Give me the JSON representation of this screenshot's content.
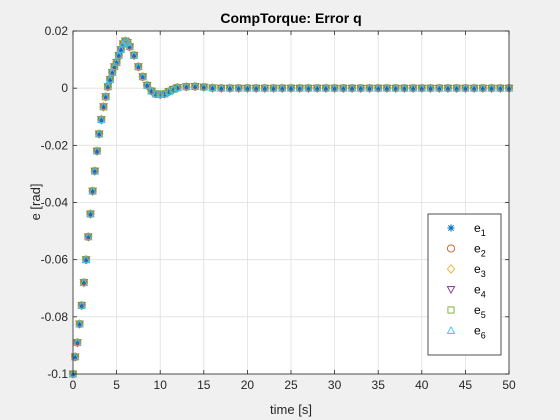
{
  "chart_data": {
    "type": "scatter",
    "title": "CompTorque: Error q",
    "xlabel": "time [s]",
    "ylabel": "e [rad]",
    "xlim": [
      0,
      50
    ],
    "ylim": [
      -0.1,
      0.02
    ],
    "xticks": [
      "0",
      "5",
      "10",
      "15",
      "20",
      "25",
      "30",
      "35",
      "40",
      "45",
      "50"
    ],
    "yticks": [
      "0.02",
      "0",
      "-0.02",
      "-0.04",
      "-0.06",
      "-0.08",
      "-0.1"
    ],
    "grid": true,
    "legend_position": "bottom-right",
    "x": [
      0,
      0.25,
      0.5,
      0.75,
      1,
      1.25,
      1.5,
      1.75,
      2,
      2.25,
      2.5,
      2.75,
      3,
      3.25,
      3.5,
      3.75,
      4,
      4.25,
      4.5,
      4.75,
      5,
      5.25,
      5.5,
      5.75,
      6,
      6.25,
      6.5,
      7,
      7.5,
      8,
      8.5,
      9,
      9.5,
      10,
      10.5,
      11,
      11.5,
      12,
      13,
      14,
      15,
      16,
      17,
      18,
      19,
      20,
      21,
      22,
      23,
      24,
      25,
      26,
      27,
      28,
      29,
      30,
      31,
      32,
      33,
      34,
      35,
      36,
      37,
      38,
      39,
      40,
      41,
      42,
      43,
      44,
      45,
      46,
      47,
      48,
      49,
      50
    ],
    "y": [
      -0.1,
      -0.094,
      -0.089,
      -0.0825,
      -0.076,
      -0.068,
      -0.06,
      -0.052,
      -0.044,
      -0.036,
      -0.029,
      -0.022,
      -0.016,
      -0.011,
      -0.0065,
      -0.003,
      0.0005,
      0.003,
      0.0055,
      0.0075,
      0.009,
      0.0115,
      0.0135,
      0.0155,
      0.0165,
      0.016,
      0.0145,
      0.0115,
      0.0075,
      0.004,
      0.001,
      -0.001,
      -0.002,
      -0.0022,
      -0.002,
      -0.0012,
      -0.0004,
      0.0002,
      0.0005,
      0.0006,
      0.0004,
      0.0001,
      0,
      0,
      0,
      0,
      0,
      0,
      0,
      0,
      0,
      0,
      0,
      0,
      0,
      0,
      0,
      0,
      0,
      0,
      0,
      0,
      0,
      0,
      0,
      0,
      0,
      0,
      0,
      0,
      0,
      0,
      0,
      0,
      0,
      0
    ],
    "series": [
      {
        "name": "e",
        "sub": "1",
        "marker": "asterisk",
        "color": "#0072BD"
      },
      {
        "name": "e",
        "sub": "2",
        "marker": "circle",
        "color": "#D95319"
      },
      {
        "name": "e",
        "sub": "3",
        "marker": "diamond",
        "color": "#EDB120"
      },
      {
        "name": "e",
        "sub": "4",
        "marker": "triangle-down",
        "color": "#7E2F8E"
      },
      {
        "name": "e",
        "sub": "5",
        "marker": "square",
        "color": "#77AC30"
      },
      {
        "name": "e",
        "sub": "6",
        "marker": "triangle-up",
        "color": "#4DBEEE"
      }
    ]
  }
}
